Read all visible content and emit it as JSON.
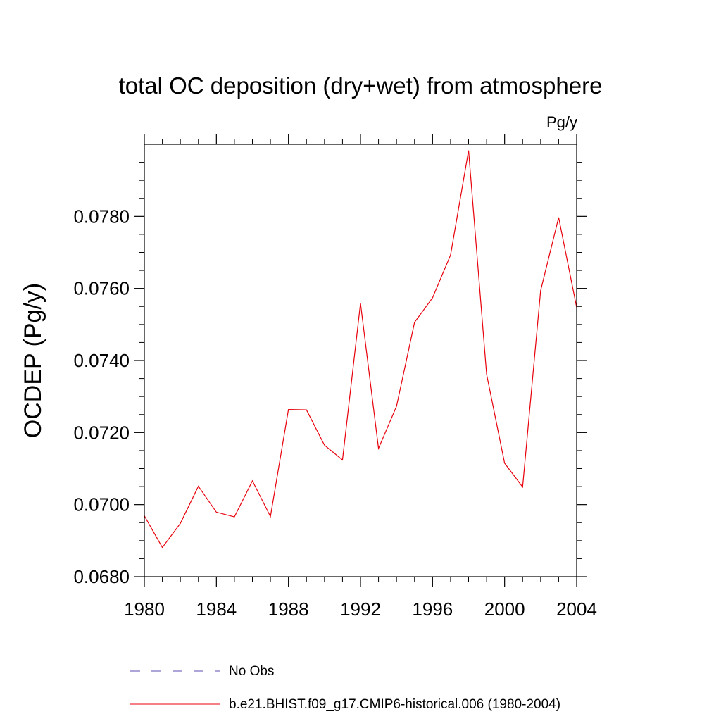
{
  "chart_data": {
    "type": "line",
    "title": "total OC deposition (dry+wet) from atmosphere",
    "units_label": "Pg/y",
    "xlabel": "",
    "ylabel": "OCDEP  (Pg/y)",
    "xlim": [
      1980,
      2004
    ],
    "ylim": [
      0.068,
      0.08
    ],
    "x_ticks": [
      1980,
      1984,
      1988,
      1992,
      1996,
      2000,
      2004
    ],
    "x_tick_labels": [
      "1980",
      "1984",
      "1988",
      "1992",
      "1996",
      "2000",
      "2004"
    ],
    "y_ticks": [
      0.068,
      0.07,
      0.072,
      0.074,
      0.076,
      0.078
    ],
    "y_tick_labels": [
      "0.0680",
      "0.0700",
      "0.0720",
      "0.0740",
      "0.0760",
      "0.0780"
    ],
    "grid": false,
    "legend_position": "bottom",
    "series": [
      {
        "name": "b.e21.BHIST.f09_g17.CMIP6-historical.006 (1980-2004)",
        "color": "#e8000b",
        "style": "solid",
        "x": [
          1980,
          1981,
          1982,
          1983,
          1984,
          1985,
          1986,
          1987,
          1988,
          1989,
          1990,
          1991,
          1992,
          1993,
          1994,
          1995,
          1996,
          1997,
          1998,
          1999,
          2000,
          2001,
          2002,
          2003,
          2004
        ],
        "y": [
          0.06969,
          0.06881,
          0.06948,
          0.07051,
          0.06979,
          0.06966,
          0.07066,
          0.06967,
          0.07264,
          0.07263,
          0.07165,
          0.07124,
          0.07559,
          0.07156,
          0.07273,
          0.07506,
          0.07574,
          0.07693,
          0.07983,
          0.07362,
          0.07115,
          0.07049,
          0.07594,
          0.07797,
          0.07547
        ]
      }
    ],
    "legend": [
      {
        "label": "No Obs",
        "color": "#5a4fb0",
        "style": "dashed"
      },
      {
        "label": "b.e21.BHIST.f09_g17.CMIP6-historical.006 (1980-2004)",
        "color": "#e8000b",
        "style": "solid"
      }
    ]
  }
}
